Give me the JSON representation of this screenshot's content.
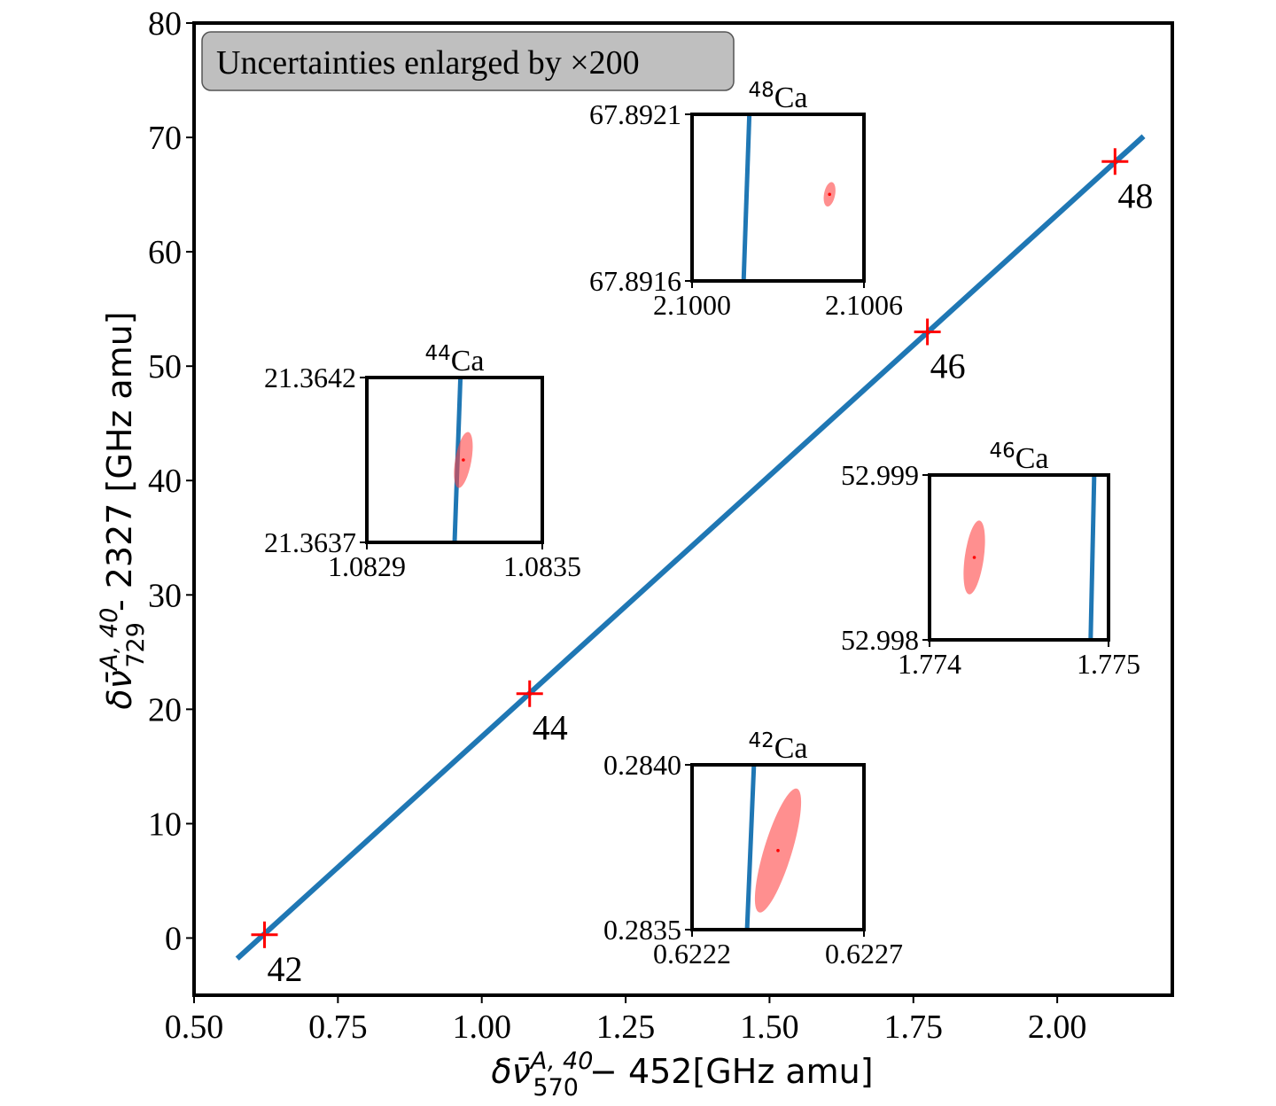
{
  "colors": {
    "fit_line": "#1f77b4",
    "marker": "#ff0000",
    "ellipse_fill": "#ff4444",
    "annotation_box": "#bfbfbf"
  },
  "chart_data": {
    "type": "scatter",
    "title": "",
    "xlabel_prefix": "δν̄",
    "xlabel_sub": "570",
    "xlabel_sup": "A, 40",
    "xlabel_suffix": " − 452[GHz amu]",
    "ylabel_prefix": "δν̄",
    "ylabel_sub": "729",
    "ylabel_sup": "A, 40",
    "ylabel_suffix": " - 2327 [GHz amu]",
    "xlim": [
      0.5,
      2.2
    ],
    "ylim": [
      -5,
      80
    ],
    "xticks": [
      0.5,
      0.75,
      1.0,
      1.25,
      1.5,
      1.75,
      2.0
    ],
    "xtick_labels": [
      "0.50",
      "0.75",
      "1.00",
      "1.25",
      "1.50",
      "1.75",
      "2.00"
    ],
    "yticks": [
      0,
      10,
      20,
      30,
      40,
      50,
      60,
      70,
      80
    ],
    "ytick_labels": [
      "0",
      "10",
      "20",
      "30",
      "40",
      "50",
      "60",
      "70",
      "80"
    ],
    "annotation_text": "Uncertainties enlarged by ×200",
    "fit_line": {
      "x": [
        0.575,
        2.15
      ],
      "y": [
        -1.8,
        70.1
      ]
    },
    "points": [
      {
        "label": "42",
        "x": 0.6224,
        "y": 0.2837
      },
      {
        "label": "44",
        "x": 1.0832,
        "y": 21.364
      },
      {
        "label": "46",
        "x": 1.7744,
        "y": 52.998
      },
      {
        "label": "48",
        "x": 2.1004,
        "y": 67.892
      }
    ],
    "insets": [
      {
        "isotope_mass": "48",
        "element": "Ca",
        "xtick_labels": [
          "2.1000",
          "2.1006"
        ],
        "ytick_labels": [
          "67.8921",
          "67.8916"
        ],
        "xlim": [
          2.1,
          2.1006
        ],
        "ylim": [
          67.8916,
          67.8921
        ],
        "line": {
          "x": [
            2.1002,
            2.10018
          ],
          "y": [
            67.8921,
            67.8916
          ]
        },
        "point": {
          "x": 2.10048,
          "y": 67.89186
        }
      },
      {
        "isotope_mass": "44",
        "element": "Ca",
        "xtick_labels": [
          "1.0829",
          "1.0835"
        ],
        "ytick_labels": [
          "21.3642",
          "21.3637"
        ],
        "xlim": [
          1.0829,
          1.0835
        ],
        "ylim": [
          21.3637,
          21.3642
        ],
        "line": {
          "x": [
            1.08322,
            1.0832
          ],
          "y": [
            21.3642,
            21.3637
          ]
        },
        "point": {
          "x": 1.08323,
          "y": 21.36395
        }
      },
      {
        "isotope_mass": "46",
        "element": "Ca",
        "xtick_labels": [
          "1.774",
          "1.775"
        ],
        "ytick_labels": [
          "52.999",
          "52.998"
        ],
        "xlim": [
          1.774,
          1.775
        ],
        "ylim": [
          52.998,
          52.999
        ],
        "line": {
          "x": [
            1.77492,
            1.7749
          ],
          "y": [
            52.999,
            52.998
          ]
        },
        "point": {
          "x": 1.77425,
          "y": 52.9985
        }
      },
      {
        "isotope_mass": "42",
        "element": "Ca",
        "xtick_labels": [
          "0.6222",
          "0.6227"
        ],
        "ytick_labels": [
          "0.2840",
          "0.2835"
        ],
        "xlim": [
          0.6222,
          0.6227
        ],
        "ylim": [
          0.2835,
          0.284
        ],
        "line": {
          "x": [
            0.62238,
            0.62236
          ],
          "y": [
            0.284,
            0.2835
          ]
        },
        "point": {
          "x": 0.62245,
          "y": 0.28374
        }
      }
    ]
  }
}
